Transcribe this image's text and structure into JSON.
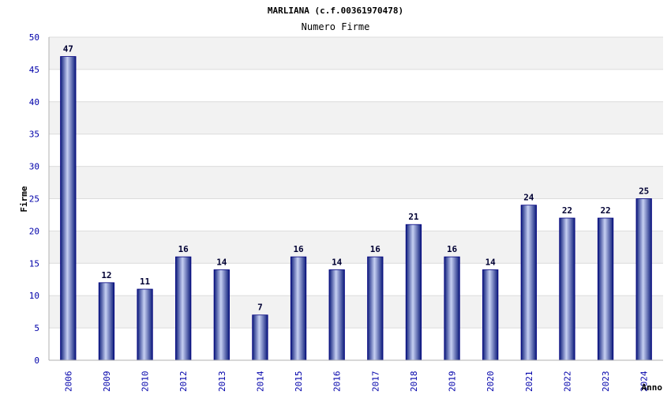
{
  "chart_data": {
    "type": "bar",
    "title": "MARLIANA (c.f.00361970478)",
    "subtitle": "Numero Firme",
    "xlabel": "Anno",
    "ylabel": "Firme",
    "ylim": [
      0,
      50
    ],
    "yticks": [
      0,
      5,
      10,
      15,
      20,
      25,
      30,
      35,
      40,
      45,
      50
    ],
    "grid": true,
    "categories": [
      "2006",
      "2009",
      "2010",
      "2012",
      "2013",
      "2014",
      "2015",
      "2016",
      "2017",
      "2018",
      "2019",
      "2020",
      "2021",
      "2022",
      "2023",
      "2024"
    ],
    "values": [
      47,
      12,
      11,
      16,
      14,
      7,
      16,
      14,
      16,
      21,
      16,
      14,
      24,
      22,
      22,
      25
    ],
    "colors": {
      "bar_dark": "#0b1a7a",
      "bar_light": "#c6d0f2",
      "bar_stroke": "#000080",
      "band": "#f2f2f2",
      "gridline": "#dcdcdc",
      "tick_text": "#0000aa",
      "value_text": "#000033"
    }
  }
}
